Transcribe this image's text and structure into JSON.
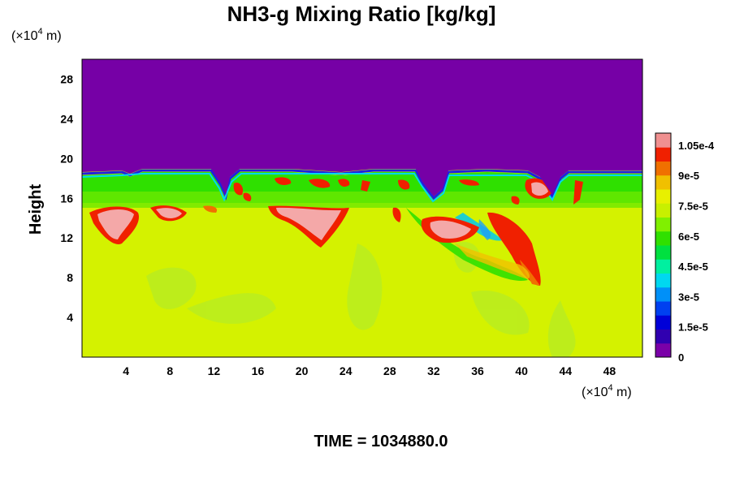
{
  "chart_data": {
    "type": "heatmap",
    "title": "NH3-g Mixing Ratio [kg/kg]",
    "ylabel": "Height",
    "xunit_prefix": "(×10",
    "xunit_exp": "4",
    "xunit_suffix": " m)",
    "yunit_prefix": "(×10",
    "yunit_exp": "4",
    "yunit_suffix": " m)",
    "xlim": [
      0,
      51
    ],
    "ylim": [
      0,
      30
    ],
    "xticks": [
      4,
      8,
      12,
      16,
      20,
      24,
      28,
      32,
      36,
      40,
      44,
      48
    ],
    "yticks": [
      4,
      8,
      12,
      16,
      20,
      24,
      28
    ],
    "colorbar": {
      "min": 0,
      "max": 0.000111,
      "labels": [
        {
          "value": 0,
          "text": "0"
        },
        {
          "value": 1.5e-05,
          "text": "1.5e-5"
        },
        {
          "value": 3e-05,
          "text": "3e-5"
        },
        {
          "value": 4.5e-05,
          "text": "4.5e-5"
        },
        {
          "value": 6e-05,
          "text": "6e-5"
        },
        {
          "value": 7.5e-05,
          "text": "7.5e-5"
        },
        {
          "value": 9e-05,
          "text": "9e-5"
        },
        {
          "value": 0.000105,
          "text": "1.05e-4"
        }
      ],
      "colors": [
        "#7a00a8",
        "#3000b0",
        "#0000d8",
        "#0040f0",
        "#0090f8",
        "#00d8f0",
        "#00f0a0",
        "#00e040",
        "#30e000",
        "#80f000",
        "#c8f000",
        "#e8f000",
        "#f0c000",
        "#f07000",
        "#f02000",
        "#f09090"
      ]
    },
    "regions": {
      "background_value": 7e-05,
      "upper_layer": {
        "value": 0,
        "color": "#7600a6"
      },
      "bands": [
        {
          "y_range": [
            15.5,
            18.3
          ],
          "value": 5e-05
        },
        {
          "y_range": [
            18.3,
            18.6
          ],
          "value": 1.5e-05
        }
      ],
      "maxima_color": "#f4a8a8"
    },
    "time_label": "TIME = 1034880.0"
  }
}
